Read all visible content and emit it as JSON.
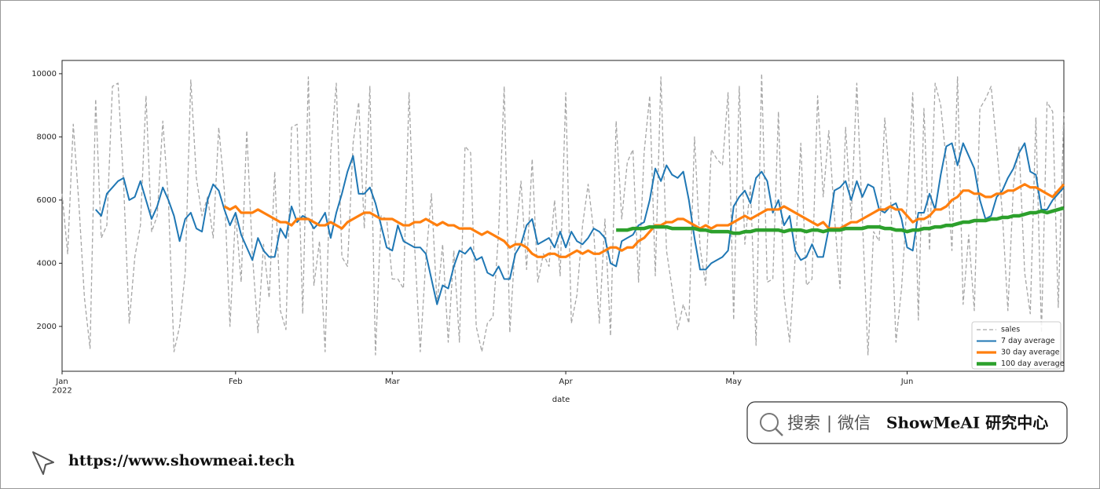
{
  "chart_data": {
    "type": "line",
    "xlabel": "date",
    "categories": [
      "Jan\n2022",
      null,
      null,
      null,
      null,
      null,
      null,
      null,
      null,
      null,
      null,
      null,
      null,
      null,
      null,
      null,
      null,
      null,
      null,
      null,
      null,
      null,
      null,
      null,
      null,
      null,
      null,
      null,
      null,
      null,
      null,
      "Feb",
      null,
      null,
      null,
      null,
      null,
      null,
      null,
      null,
      null,
      null,
      null,
      null,
      null,
      null,
      null,
      null,
      null,
      null,
      null,
      null,
      null,
      null,
      null,
      null,
      null,
      null,
      null,
      "Mar",
      null,
      null,
      null,
      null,
      null,
      null,
      null,
      null,
      null,
      null,
      null,
      null,
      null,
      null,
      null,
      null,
      null,
      null,
      null,
      null,
      null,
      null,
      null,
      null,
      null,
      null,
      null,
      null,
      null,
      null,
      "Apr",
      null,
      null,
      null,
      null,
      null,
      null,
      null,
      null,
      null,
      null,
      null,
      null,
      null,
      null,
      null,
      null,
      null,
      null,
      null,
      null,
      null,
      null,
      null,
      null,
      null,
      null,
      null,
      null,
      null,
      "May",
      null,
      null,
      null,
      null,
      null,
      null,
      null,
      null,
      null,
      null,
      null,
      null,
      null,
      null,
      null,
      null,
      null,
      null,
      null,
      null,
      null,
      null,
      null,
      null,
      null,
      null,
      null,
      null,
      null,
      null,
      "Jun",
      null,
      null,
      null,
      null,
      null,
      null,
      null,
      null,
      null,
      null,
      null,
      null,
      null,
      null,
      null,
      null,
      null,
      null,
      null,
      null,
      null,
      null,
      null,
      null,
      null,
      null,
      null,
      null
    ],
    "ylim": [
      580,
      10420
    ],
    "yticks": [
      2000,
      4000,
      6000,
      8000,
      10000
    ],
    "legend": "lower right",
    "series": [
      {
        "name": "sales",
        "color": "#a6a6a6",
        "linestyle": "dashed",
        "linewidth": 1.3,
        "values": [
          6200,
          4300,
          8400,
          5900,
          2900,
          1300,
          9200,
          4800,
          5200,
          9600,
          9700,
          6500,
          2100,
          4200,
          5200,
          9300,
          5000,
          5500,
          8500,
          6000,
          1200,
          2000,
          3700,
          9800,
          6700,
          5500,
          6100,
          4800,
          8300,
          6300,
          2000,
          5600,
          3400,
          8200,
          4300,
          1800,
          4600,
          2900,
          6900,
          2500,
          1900,
          8300,
          8400,
          2400,
          9900,
          3300,
          4700,
          1200,
          7500,
          9700,
          4200,
          3900,
          7800,
          9100,
          5100,
          9600,
          1100,
          5500,
          5400,
          3500,
          3500,
          3200,
          9400,
          4500,
          1200,
          4100,
          6200,
          2700,
          4600,
          1500,
          4400,
          1500,
          7700,
          7500,
          2000,
          1200,
          2100,
          2300,
          5000,
          9600,
          1800,
          4700,
          6600,
          3800,
          7300,
          3400,
          4300,
          3900,
          6000,
          3600,
          9400,
          2100,
          3000,
          5200,
          6500,
          5000,
          2100,
          5400,
          1700,
          8500,
          5400,
          7200,
          7600,
          3400,
          7500,
          9300,
          3600,
          9900,
          4400,
          3200,
          1900,
          2700,
          2100,
          8000,
          4500,
          3300,
          7600,
          7300,
          7100,
          9400,
          2200,
          9600,
          4600,
          6500,
          1400,
          10000,
          3400,
          3500,
          8800,
          3000,
          1500,
          4200,
          7800,
          3300,
          3500,
          9300,
          6100,
          8200,
          5500,
          3200,
          8300,
          5400,
          9700,
          5400,
          1100,
          5000,
          4700,
          8600,
          6300,
          1500,
          3200,
          6000,
          9400,
          2200,
          8900,
          4400,
          9700,
          9000,
          7200,
          4400,
          9900,
          2700,
          4900,
          2500,
          8900,
          9200,
          9600,
          7700,
          5600,
          2500,
          6500,
          7700,
          3700,
          2400,
          8600,
          1800,
          9100,
          8800,
          2600,
          8800
        ]
      },
      {
        "name": "7 day average",
        "color": "#1f77b4",
        "linestyle": "solid",
        "linewidth": 2,
        "values": [
          null,
          null,
          null,
          null,
          null,
          null,
          5700,
          5500,
          6200,
          6400,
          6600,
          6700,
          6000,
          6100,
          6600,
          6000,
          5400,
          5800,
          6400,
          6000,
          5500,
          4700,
          5400,
          5600,
          5100,
          5000,
          6000,
          6500,
          6300,
          5700,
          5200,
          5600,
          4900,
          4500,
          4100,
          4800,
          4400,
          4200,
          4200,
          5100,
          4800,
          5800,
          5300,
          5500,
          5400,
          5100,
          5300,
          5600,
          4800,
          5600,
          6200,
          6900,
          7400,
          6200,
          6200,
          6400,
          5900,
          5200,
          4500,
          4400,
          5200,
          4700,
          4600,
          4500,
          4500,
          4300,
          3500,
          2700,
          3300,
          3200,
          3900,
          4400,
          4300,
          4500,
          4100,
          4200,
          3700,
          3600,
          3900,
          3500,
          3500,
          4300,
          4600,
          5200,
          5400,
          4600,
          4700,
          4800,
          4500,
          5000,
          4500,
          5000,
          4700,
          4600,
          4800,
          5100,
          5000,
          4800,
          4000,
          3900,
          4700,
          4800,
          4900,
          5200,
          5300,
          6000,
          7000,
          6600,
          7100,
          6800,
          6700,
          6900,
          6000,
          4800,
          3800,
          3800,
          4000,
          4100,
          4200,
          4400,
          5800,
          6100,
          6300,
          5900,
          6700,
          6900,
          6600,
          5600,
          6000,
          5200,
          5500,
          4400,
          4100,
          4200,
          4600,
          4200,
          4200,
          5100,
          6300,
          6400,
          6600,
          6000,
          6600,
          6100,
          6500,
          6400,
          5700,
          5600,
          5800,
          5900,
          5400,
          4500,
          4400,
          5600,
          5600,
          6200,
          5700,
          6800,
          7700,
          7800,
          7100,
          7800,
          7400,
          7000,
          6000,
          5400,
          5500,
          6100,
          6300,
          6700,
          7000,
          7500,
          7800,
          6900,
          6800,
          5700,
          5700,
          6000,
          6200,
          6400
        ]
      },
      {
        "name": "30 day average",
        "color": "#ff7f0e",
        "linestyle": "solid",
        "linewidth": 3.2,
        "values": [
          null,
          null,
          null,
          null,
          null,
          null,
          null,
          null,
          null,
          null,
          null,
          null,
          null,
          null,
          null,
          null,
          null,
          null,
          null,
          null,
          null,
          null,
          null,
          null,
          null,
          null,
          null,
          null,
          null,
          5800,
          5700,
          5800,
          5600,
          5600,
          5600,
          5700,
          5600,
          5500,
          5400,
          5300,
          5300,
          5200,
          5400,
          5400,
          5400,
          5300,
          5200,
          5200,
          5300,
          5200,
          5100,
          5300,
          5400,
          5500,
          5600,
          5600,
          5500,
          5400,
          5400,
          5400,
          5300,
          5200,
          5200,
          5300,
          5300,
          5400,
          5300,
          5200,
          5300,
          5200,
          5200,
          5100,
          5100,
          5100,
          5000,
          4900,
          5000,
          4900,
          4800,
          4700,
          4500,
          4600,
          4600,
          4500,
          4300,
          4200,
          4200,
          4300,
          4300,
          4200,
          4200,
          4300,
          4400,
          4300,
          4400,
          4300,
          4300,
          4400,
          4500,
          4500,
          4400,
          4500,
          4500,
          4700,
          4800,
          5000,
          5200,
          5200,
          5300,
          5300,
          5400,
          5400,
          5300,
          5200,
          5100,
          5200,
          5100,
          5200,
          5200,
          5200,
          5300,
          5400,
          5500,
          5400,
          5500,
          5600,
          5700,
          5700,
          5700,
          5800,
          5700,
          5600,
          5500,
          5400,
          5300,
          5200,
          5300,
          5100,
          5100,
          5100,
          5200,
          5300,
          5300,
          5400,
          5500,
          5600,
          5700,
          5700,
          5800,
          5700,
          5700,
          5500,
          5300,
          5400,
          5400,
          5500,
          5700,
          5700,
          5800,
          6000,
          6100,
          6300,
          6300,
          6200,
          6200,
          6100,
          6100,
          6200,
          6200,
          6300,
          6300,
          6400,
          6500,
          6400,
          6400,
          6300,
          6200,
          6100,
          6300,
          6500
        ]
      },
      {
        "name": "100 day average",
        "color": "#2ca02c",
        "linestyle": "solid",
        "linewidth": 4.5,
        "values": [
          null,
          null,
          null,
          null,
          null,
          null,
          null,
          null,
          null,
          null,
          null,
          null,
          null,
          null,
          null,
          null,
          null,
          null,
          null,
          null,
          null,
          null,
          null,
          null,
          null,
          null,
          null,
          null,
          null,
          null,
          null,
          null,
          null,
          null,
          null,
          null,
          null,
          null,
          null,
          null,
          null,
          null,
          null,
          null,
          null,
          null,
          null,
          null,
          null,
          null,
          null,
          null,
          null,
          null,
          null,
          null,
          null,
          null,
          null,
          null,
          null,
          null,
          null,
          null,
          null,
          null,
          null,
          null,
          null,
          null,
          null,
          null,
          null,
          null,
          null,
          null,
          null,
          null,
          null,
          null,
          null,
          null,
          null,
          null,
          null,
          null,
          null,
          null,
          null,
          null,
          null,
          null,
          null,
          null,
          null,
          null,
          null,
          null,
          null,
          5050,
          5050,
          5050,
          5100,
          5100,
          5100,
          5150,
          5150,
          5150,
          5150,
          5100,
          5100,
          5100,
          5100,
          5100,
          5050,
          5050,
          5000,
          5000,
          5000,
          5000,
          4950,
          4950,
          5000,
          5000,
          5050,
          5050,
          5050,
          5050,
          5050,
          5000,
          5050,
          5050,
          5050,
          5000,
          5050,
          5050,
          5000,
          5050,
          5050,
          5050,
          5100,
          5100,
          5100,
          5100,
          5150,
          5150,
          5150,
          5100,
          5100,
          5050,
          5050,
          5000,
          5050,
          5050,
          5100,
          5100,
          5150,
          5150,
          5200,
          5200,
          5250,
          5300,
          5300,
          5350,
          5350,
          5350,
          5400,
          5400,
          5450,
          5450,
          5500,
          5500,
          5550,
          5600,
          5600,
          5650,
          5600,
          5650,
          5700,
          5750
        ]
      }
    ]
  },
  "footer": {
    "search": "搜索",
    "separator": "|",
    "wechat": "微信",
    "brand": "ShowMeAI 研究中心",
    "url": "https://www.showmeai.tech"
  }
}
